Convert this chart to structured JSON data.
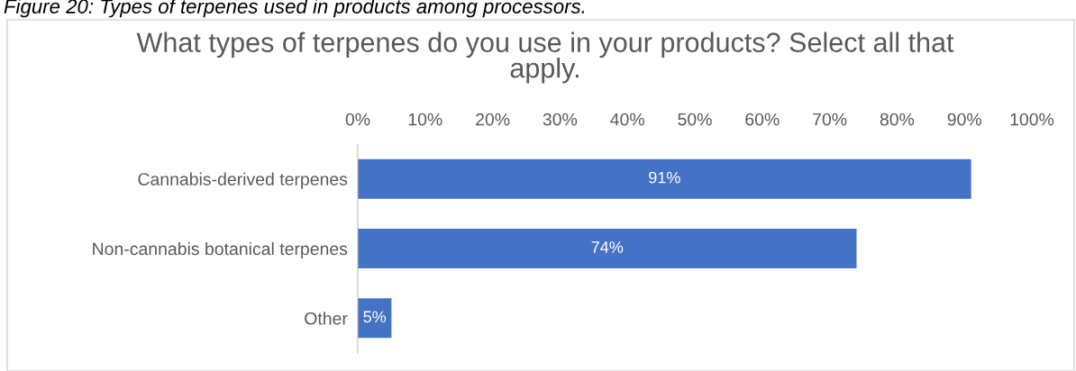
{
  "chart_data": {
    "type": "bar",
    "orientation": "horizontal",
    "title": "What types of terpenes do you use in your products? Select all that apply.",
    "annotations": [
      "Figure 20: Types of terpenes used in products among processors."
    ],
    "categories": [
      "Cannabis-derived terpenes",
      "Non-cannabis botanical terpenes",
      "Other"
    ],
    "values": [
      91,
      74,
      5
    ],
    "color": "#4472c4",
    "value_labels": [
      "91%",
      "74%",
      "5%"
    ],
    "xlim": [
      0,
      100
    ],
    "xticks": [
      {
        "value": 0,
        "label": "0%"
      },
      {
        "value": 10,
        "label": "10%"
      },
      {
        "value": 20,
        "label": "20%"
      },
      {
        "value": 30,
        "label": "30%"
      },
      {
        "value": 40,
        "label": "40%"
      },
      {
        "value": 50,
        "label": "50%"
      },
      {
        "value": 60,
        "label": "60%"
      },
      {
        "value": 70,
        "label": "70%"
      },
      {
        "value": 80,
        "label": "80%"
      },
      {
        "value": 90,
        "label": "90%"
      },
      {
        "value": 100,
        "label": "100%"
      }
    ],
    "grid": false,
    "legend": false
  }
}
